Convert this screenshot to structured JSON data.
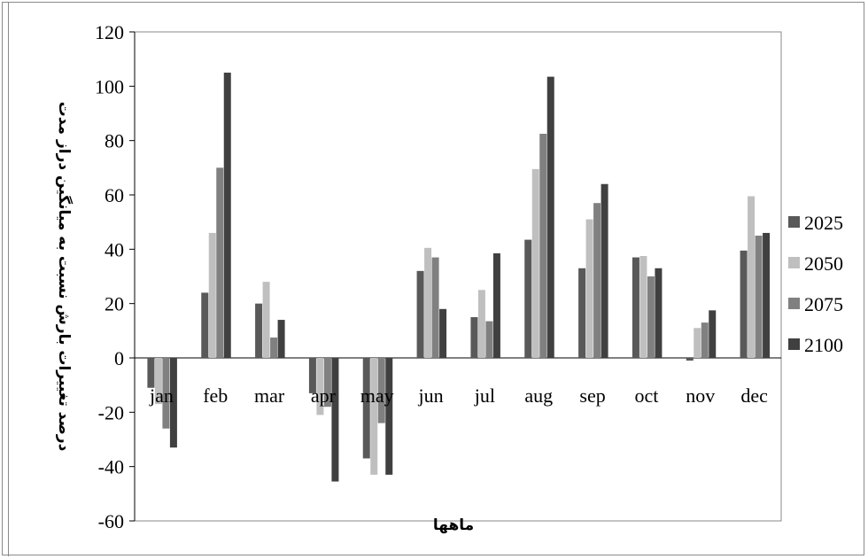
{
  "chart_data": {
    "type": "bar",
    "title": "",
    "xlabel": "ماهها",
    "ylabel": "درصد تغییرات بارش نسبت به میانگین دراز مدت",
    "ylim": [
      -60,
      120
    ],
    "yticks": [
      120,
      100,
      80,
      60,
      40,
      20,
      0,
      -20,
      -40,
      -60
    ],
    "grid": false,
    "legend_position": "right",
    "categories": [
      "jan",
      "feb",
      "mar",
      "apr",
      "may",
      "jun",
      "jul",
      "aug",
      "sep",
      "oct",
      "nov",
      "dec"
    ],
    "series": [
      {
        "name": "2025",
        "color": "#595959",
        "values": [
          -11,
          24,
          20,
          -13,
          -37,
          32,
          15,
          43.5,
          33,
          37,
          -1,
          39.5
        ]
      },
      {
        "name": "2050",
        "color": "#bfbfbf",
        "values": [
          -17,
          46,
          28,
          -21,
          -43,
          40.5,
          25,
          69.5,
          51,
          37.5,
          11,
          59.5
        ]
      },
      {
        "name": "2075",
        "color": "#808080",
        "values": [
          -26,
          70,
          7.5,
          -18,
          -24,
          37,
          13.5,
          82.5,
          57,
          30,
          13,
          45
        ]
      },
      {
        "name": "2100",
        "color": "#404040",
        "values": [
          -33,
          105,
          14,
          -45.5,
          -43,
          18,
          38.5,
          103.5,
          64,
          33,
          17.5,
          46
        ]
      }
    ]
  }
}
